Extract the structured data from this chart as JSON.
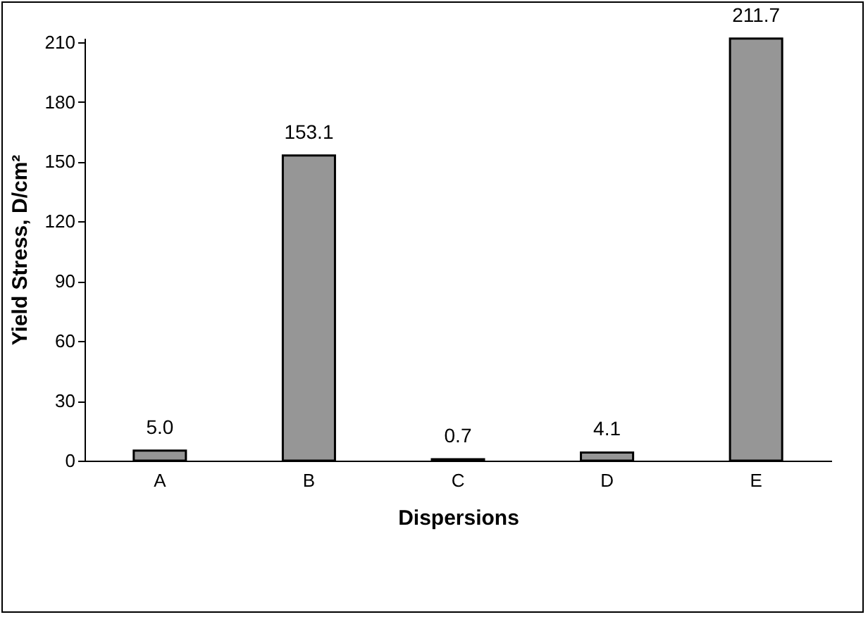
{
  "chart_data": {
    "type": "bar",
    "xlabel": "Dispersions",
    "ylabel": "Yield Stress, D/cm²",
    "categories": [
      "A",
      "B",
      "C",
      "D",
      "E"
    ],
    "values": [
      5.0,
      153.1,
      0.7,
      4.1,
      211.7
    ],
    "value_labels": [
      "5.0",
      "153.1",
      "0.7",
      "4.1",
      "211.7"
    ],
    "color": "#969696",
    "ylim": [
      0,
      212
    ],
    "yticks": [
      0,
      30,
      60,
      90,
      120,
      150,
      180,
      210
    ],
    "grid": false
  }
}
